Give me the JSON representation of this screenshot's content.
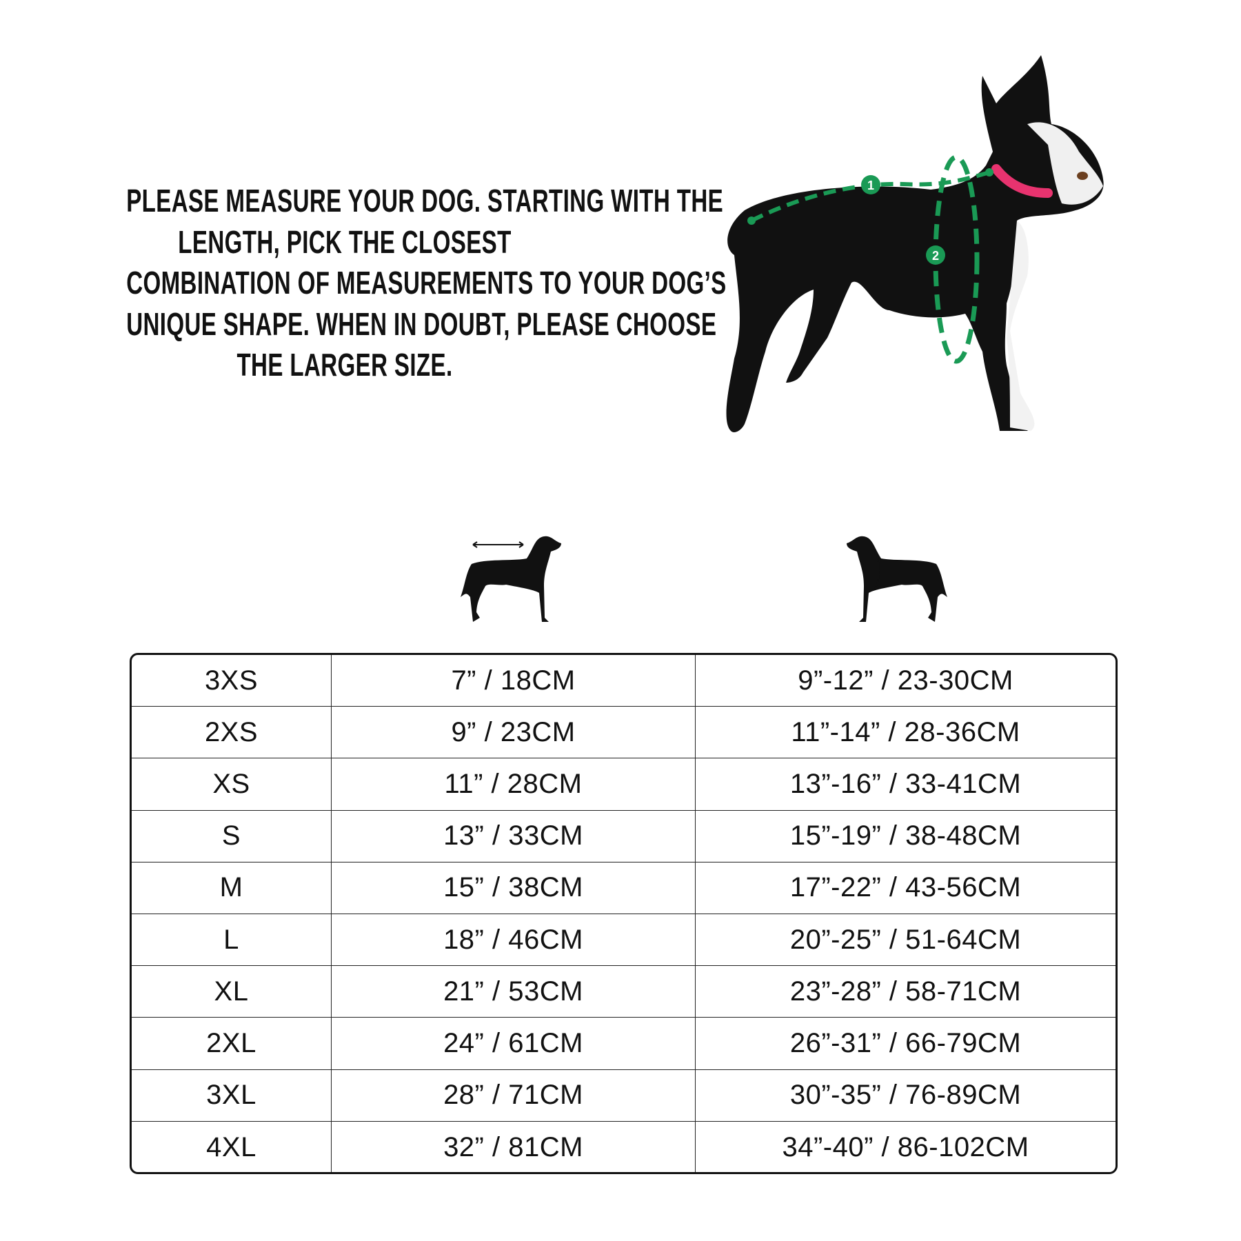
{
  "instructions": {
    "lines": [
      "PLEASE MEASURE YOUR DOG. STARTING WITH THE",
      "LENGTH, PICK THE CLOSEST",
      "COMBINATION OF MEASUREMENTS TO YOUR DOG’S",
      "UNIQUE SHAPE. WHEN IN DOUBT, PLEASE CHOOSE",
      "THE LARGER SIZE."
    ]
  },
  "photo": {
    "markers": [
      "1",
      "2"
    ],
    "accent_color": "#1a9a55",
    "collar_color": "#e8336f"
  },
  "icons": {
    "length": "dog-length-icon",
    "girth": "dog-girth-icon"
  },
  "table": {
    "rows": [
      {
        "size": "3XS",
        "length": "7” / 18CM",
        "girth": "9”-12” / 23-30CM"
      },
      {
        "size": "2XS",
        "length": "9” / 23CM",
        "girth": "11”-14” / 28-36CM"
      },
      {
        "size": "XS",
        "length": "11” / 28CM",
        "girth": "13”-16” / 33-41CM"
      },
      {
        "size": "S",
        "length": "13” / 33CM",
        "girth": "15”-19” / 38-48CM"
      },
      {
        "size": "M",
        "length": "15” / 38CM",
        "girth": "17”-22” / 43-56CM"
      },
      {
        "size": "L",
        "length": "18” / 46CM",
        "girth": "20”-25” / 51-64CM"
      },
      {
        "size": "XL",
        "length": "21” / 53CM",
        "girth": "23”-28” / 58-71CM"
      },
      {
        "size": "2XL",
        "length": "24” / 61CM",
        "girth": "26”-31” / 66-79CM"
      },
      {
        "size": "3XL",
        "length": "28” / 71CM",
        "girth": "30”-35” / 76-89CM"
      },
      {
        "size": "4XL",
        "length": "32” / 81CM",
        "girth": "34”-40” / 86-102CM"
      }
    ]
  }
}
